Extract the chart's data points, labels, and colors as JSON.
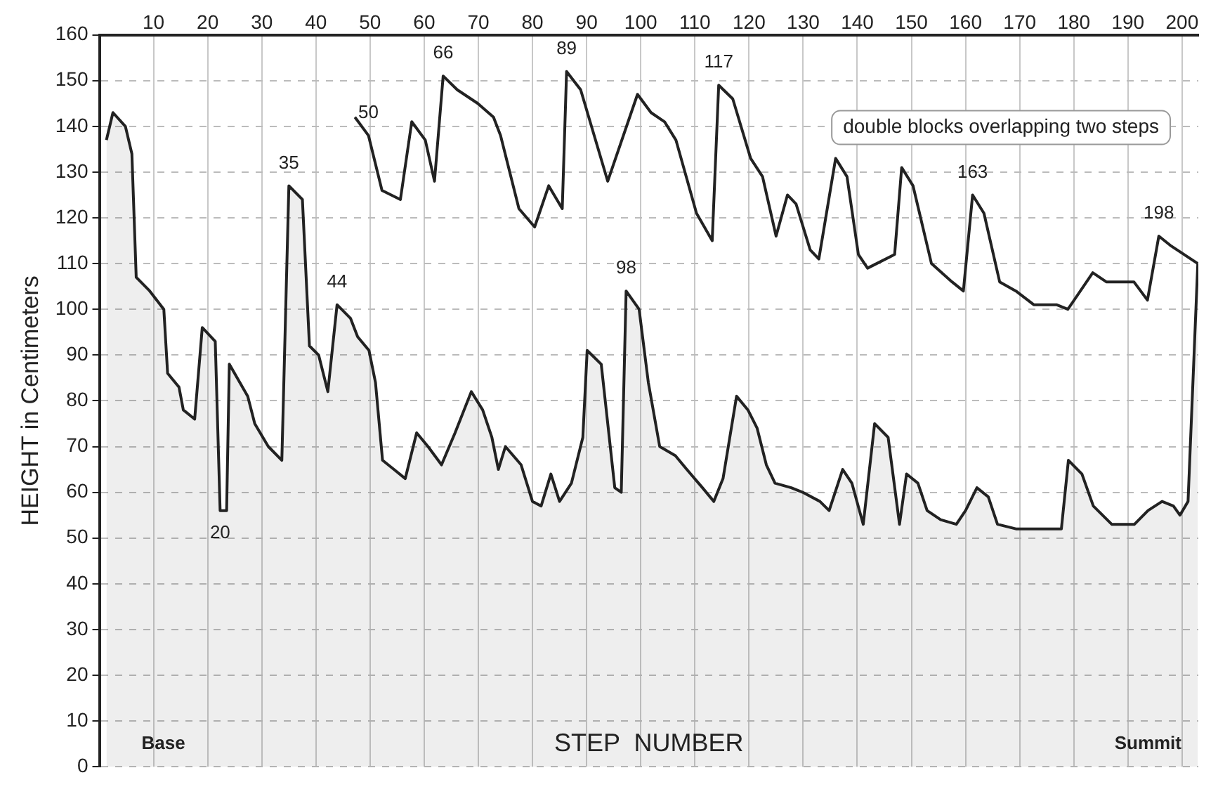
{
  "chart_data": {
    "type": "area",
    "ylabel": "HEIGHT in Centimeters",
    "xlabel": "STEP  NUMBER",
    "xlim": [
      0,
      203
    ],
    "xticks": [
      10,
      20,
      30,
      40,
      50,
      60,
      70,
      80,
      90,
      100,
      110,
      120,
      130,
      140,
      150,
      160,
      170,
      180,
      190,
      200
    ],
    "ylim": [
      0,
      160
    ],
    "yticks": [
      0,
      10,
      20,
      30,
      40,
      50,
      60,
      70,
      80,
      90,
      100,
      110,
      120,
      130,
      140,
      150,
      160
    ],
    "grid": true,
    "legend": false,
    "series": [
      {
        "color": "#222222",
        "x": [
          1.3,
          2.5,
          4.8,
          6,
          6.8,
          9.3,
          11.9,
          12.6,
          14.7,
          15.5,
          17.6,
          19,
          21.4,
          22.3,
          23.5,
          24,
          27.4,
          28.7,
          31.2,
          33.7,
          35,
          37.5,
          38.8,
          40.5,
          42.2,
          43.9,
          46.4,
          47.7,
          49.8,
          51,
          52.3,
          54.4,
          56.5,
          58.6,
          60.7,
          63.2,
          65.7,
          68.7,
          70.8,
          72.5,
          73.7,
          75,
          77.9,
          80,
          81.6,
          83.4,
          85,
          87.2,
          89.3,
          90.1,
          92.7,
          95.2,
          96.4,
          97.3,
          99.7,
          101.4,
          103.5,
          106.4,
          108.5,
          111.4,
          113.5,
          115.2,
          117.7,
          119.8,
          121.5,
          123.2,
          124.8,
          127.8,
          129.9,
          133.1,
          134.8,
          137.3,
          139,
          141.1,
          143.2,
          145.7,
          147.8,
          149.1,
          151.2,
          152.9,
          155.4,
          158.3,
          160,
          162.1,
          164.2,
          165.9,
          169.3,
          172.6,
          177.7,
          179,
          181.5,
          183.6,
          187,
          191.2,
          193.7,
          196.3,
          198.4,
          199.6,
          201.1,
          202.9
        ],
        "values": [
          137,
          143,
          140,
          134,
          107,
          104,
          100,
          86,
          83,
          78,
          76,
          96,
          93,
          56,
          56,
          88,
          81,
          75,
          70,
          67,
          127,
          124,
          92,
          90,
          82,
          101,
          98,
          94,
          91,
          84,
          67,
          65,
          63,
          73,
          70,
          66,
          73,
          82,
          78,
          72,
          65,
          70,
          66,
          58,
          57,
          64,
          58,
          62,
          72,
          91,
          88,
          61,
          60,
          104,
          100,
          84,
          70,
          68,
          65,
          61,
          58,
          63,
          81,
          78,
          74,
          66,
          62,
          61,
          60,
          58,
          56,
          65,
          62,
          53,
          75,
          72,
          53,
          64,
          62,
          56,
          54,
          53,
          56,
          61,
          59,
          53,
          52,
          52,
          52,
          67,
          64,
          57,
          53,
          53,
          56,
          58,
          57,
          55,
          58,
          110
        ]
      },
      {
        "type": "line",
        "color": "#222222",
        "x": [
          47.2,
          49.7,
          52.2,
          55.6,
          57.7,
          60.2,
          61.9,
          63.5,
          66.1,
          69.9,
          72.8,
          74.1,
          77.5,
          80.4,
          83,
          85.5,
          86.3,
          88.9,
          93.9,
          99.4,
          101.9,
          104.4,
          106.5,
          110.3,
          113.2,
          114.4,
          117,
          120.3,
          122.5,
          125,
          127.1,
          128.7,
          131.3,
          132.9,
          136,
          138.1,
          140.2,
          141.9,
          146.9,
          148.2,
          150.3,
          153.7,
          157.5,
          159.6,
          161.3,
          163.4,
          166.3,
          169.3,
          172.6,
          176.8,
          178.9,
          183.5,
          186,
          191.1,
          193.6,
          195.7,
          197.8,
          202.9
        ],
        "values": [
          142,
          138,
          126,
          124,
          141,
          137,
          128,
          151,
          148,
          145,
          142,
          138,
          122,
          118,
          127,
          122,
          152,
          148,
          128,
          147,
          143,
          141,
          137,
          121,
          115,
          149,
          146,
          133,
          129,
          116,
          125,
          123,
          113,
          111,
          133,
          129,
          112,
          109,
          112,
          131,
          127,
          110,
          106,
          104,
          125,
          121,
          106,
          104,
          101,
          101,
          100,
          108,
          106,
          106,
          102,
          116,
          114,
          110
        ]
      }
    ],
    "annotations": [
      "double blocks overlapping two steps",
      "Base",
      "Summit",
      {
        "text": "20",
        "x": 22.3,
        "y": 56
      },
      {
        "text": "35",
        "x": 35,
        "y": 127
      },
      {
        "text": "44",
        "x": 43.9,
        "y": 101
      },
      {
        "text": "50",
        "x": 49.7,
        "y": 138
      },
      {
        "text": "66",
        "x": 63.5,
        "y": 151
      },
      {
        "text": "89",
        "x": 86.3,
        "y": 152
      },
      {
        "text": "98",
        "x": 97.3,
        "y": 104
      },
      {
        "text": "117",
        "x": 114.4,
        "y": 149
      },
      {
        "text": "163",
        "x": 161.3,
        "y": 125
      },
      {
        "text": "198",
        "x": 195.7,
        "y": 116
      }
    ]
  }
}
